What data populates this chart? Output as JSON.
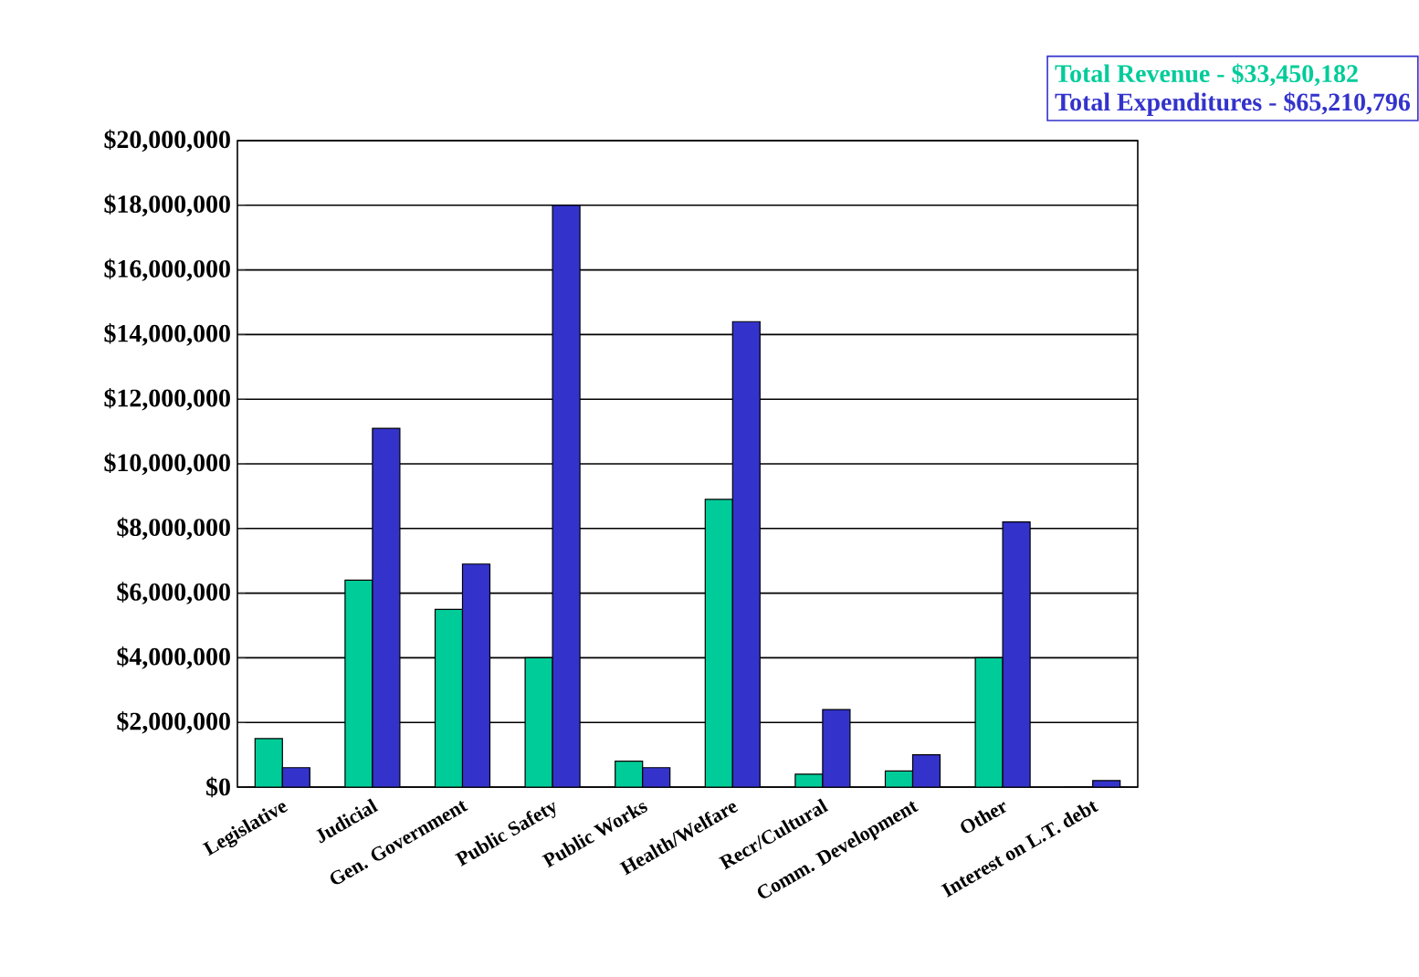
{
  "chart_data": {
    "type": "bar",
    "categories": [
      "Legislative",
      "Judicial",
      "Gen. Government",
      "Public Safety",
      "Public Works",
      "Health/Welfare",
      "Recr/Cultural",
      "Comm. Development",
      "Other",
      "Interest on L.T. debt"
    ],
    "series": [
      {
        "name": "Total Revenue - $33,450,182",
        "color": "#00cc99",
        "values": [
          1500000,
          6400000,
          5500000,
          4000000,
          800000,
          8900000,
          400000,
          500000,
          4000000,
          0
        ]
      },
      {
        "name": "Total Expenditures - $65,210,796",
        "color": "#3333cc",
        "values": [
          600000,
          11100000,
          6900000,
          18000000,
          600000,
          14400000,
          2400000,
          1000000,
          8200000,
          200000
        ]
      }
    ],
    "ylim": [
      0,
      20000000
    ],
    "yticks": [
      {
        "value": 0,
        "label": "$0"
      },
      {
        "value": 2000000,
        "label": "$2,000,000"
      },
      {
        "value": 4000000,
        "label": "$4,000,000"
      },
      {
        "value": 6000000,
        "label": "$6,000,000"
      },
      {
        "value": 8000000,
        "label": "$8,000,000"
      },
      {
        "value": 10000000,
        "label": "$10,000,000"
      },
      {
        "value": 12000000,
        "label": "$12,000,000"
      },
      {
        "value": 14000000,
        "label": "$14,000,000"
      },
      {
        "value": 16000000,
        "label": "$16,000,000"
      },
      {
        "value": 18000000,
        "label": "$18,000,000"
      },
      {
        "value": 20000000,
        "label": "$20,000,000"
      }
    ],
    "grid": "y",
    "legend": "top right"
  }
}
